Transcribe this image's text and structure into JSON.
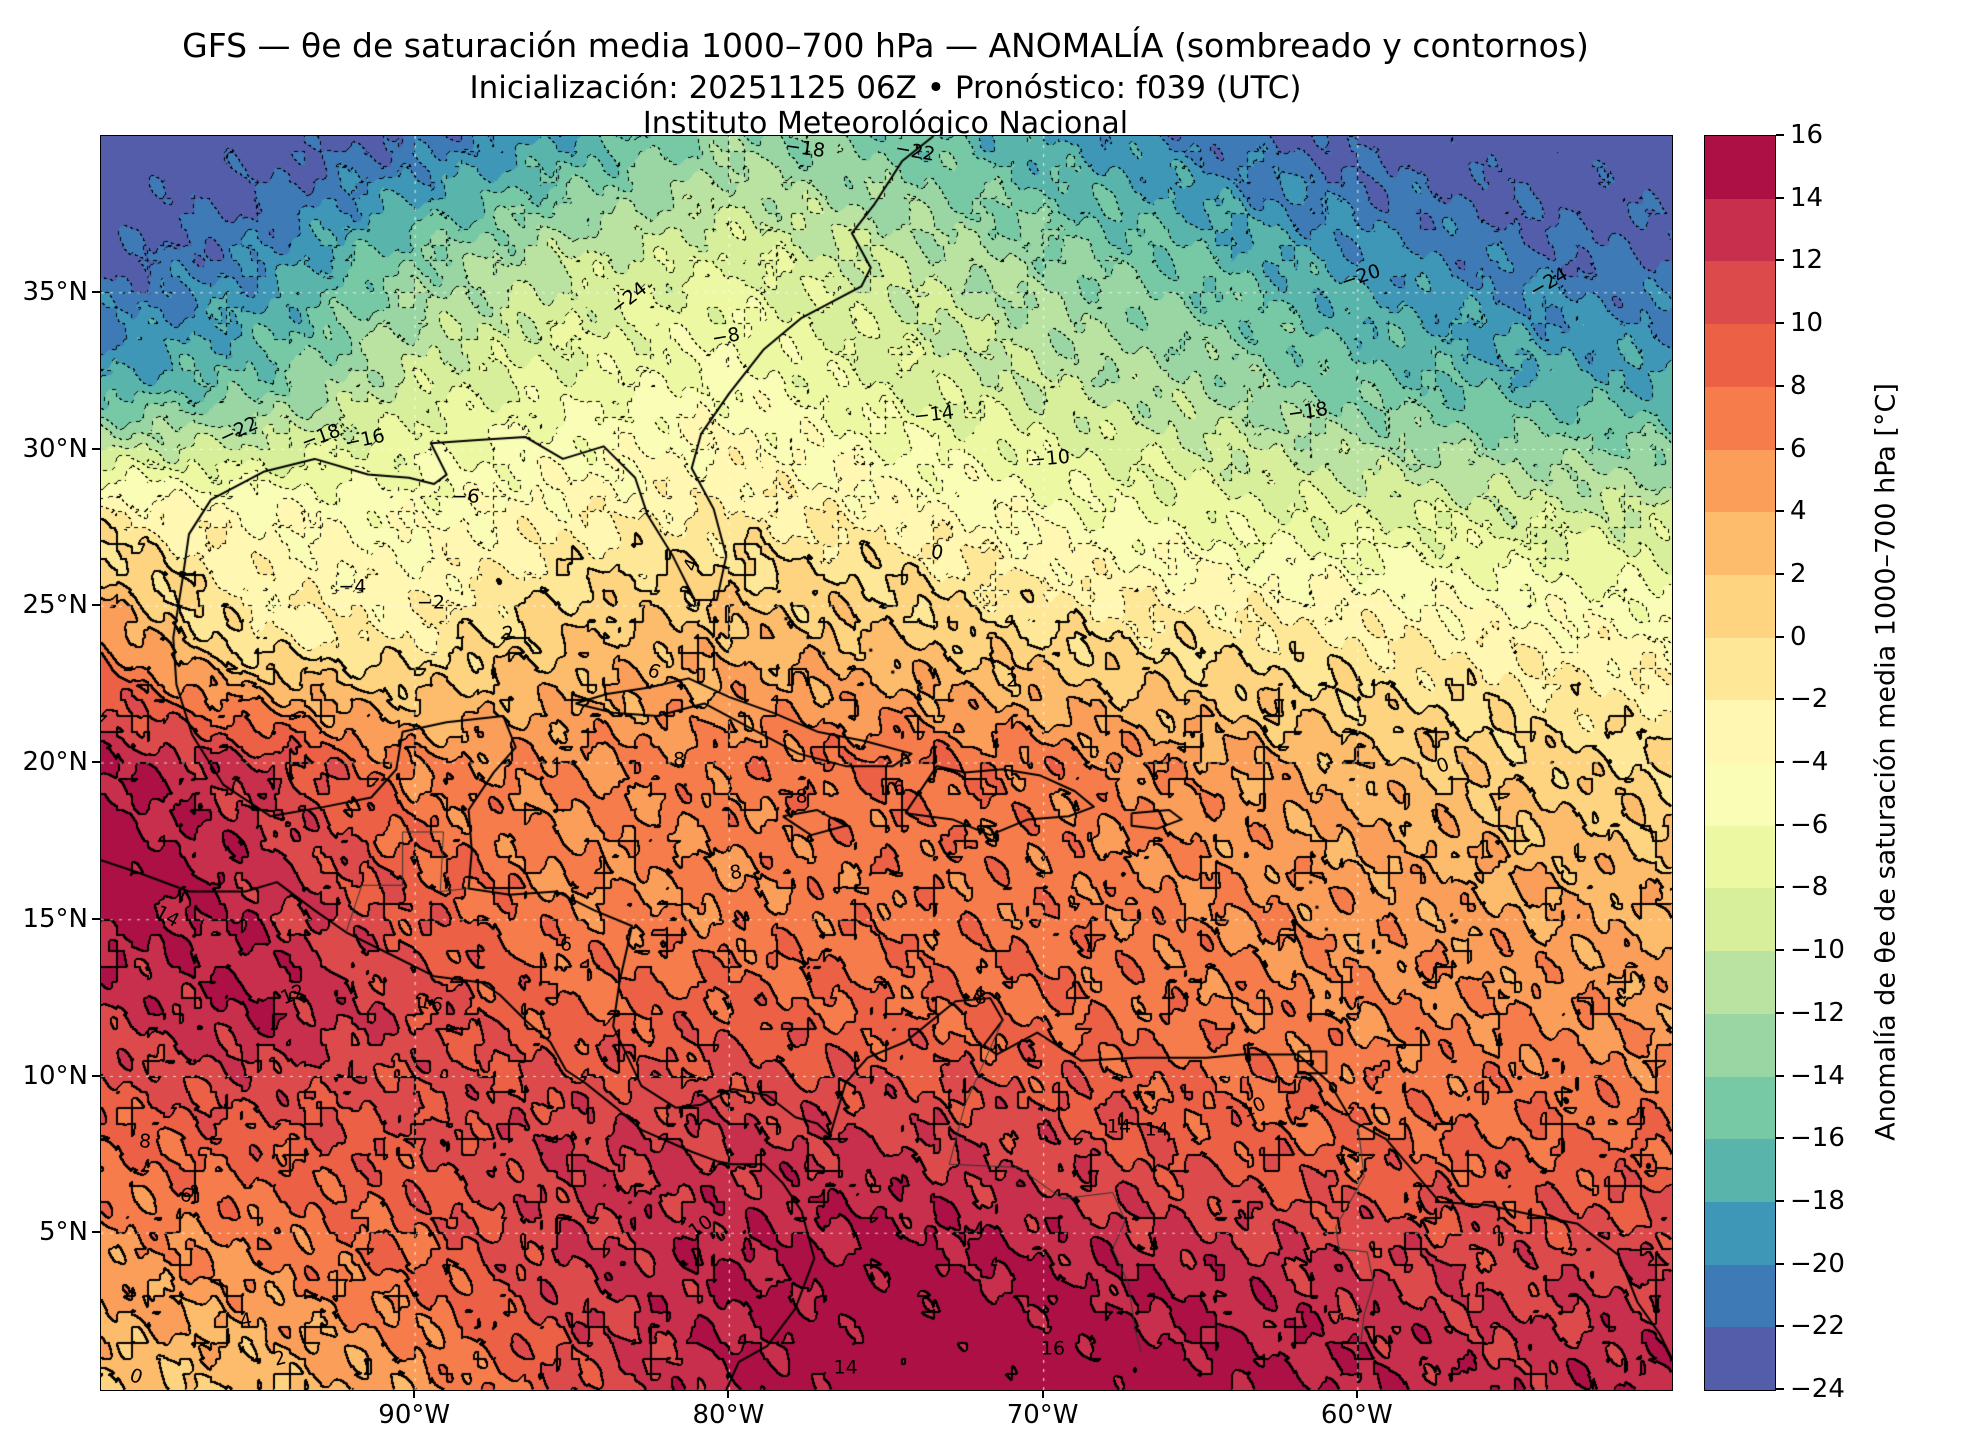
{
  "chart_data": {
    "type": "heatmap",
    "title": "GFS — θe de saturación media 1000–700 hPa — ANOMALÍA (sombreado y contornos)",
    "subtitle": "Inicialización: 20251125 06Z  •  Pronóstico: f039 (UTC)",
    "institution": "Instituto Meteorológico Nacional",
    "model": "GFS",
    "init": "20251125 06Z",
    "forecast": "f039 (UTC)",
    "colorbar_label": "Anomalía de θe de saturación media 1000–700 hPa [°C]",
    "units": "°C",
    "lon_range": [
      -100,
      -50
    ],
    "lat_range": [
      0,
      40
    ],
    "x_ticks": [
      {
        "label": "90°W",
        "lon": -90
      },
      {
        "label": "80°W",
        "lon": -80
      },
      {
        "label": "70°W",
        "lon": -70
      },
      {
        "label": "60°W",
        "lon": -60
      }
    ],
    "y_ticks": [
      {
        "label": "5°N",
        "lat": 5
      },
      {
        "label": "10°N",
        "lat": 10
      },
      {
        "label": "15°N",
        "lat": 15
      },
      {
        "label": "20°N",
        "lat": 20
      },
      {
        "label": "25°N",
        "lat": 25
      },
      {
        "label": "30°N",
        "lat": 30
      },
      {
        "label": "35°N",
        "lat": 35
      }
    ],
    "levels_min": -24,
    "levels_max": 16,
    "level_step": 2,
    "colormap_name": "Spectral_r",
    "colormap_stops": [
      "#5e4fa2",
      "#3288bd",
      "#66c2a5",
      "#abdda4",
      "#e6f598",
      "#ffffbf",
      "#fee08b",
      "#fdae61",
      "#f46d43",
      "#d53e4f",
      "#9e0142"
    ],
    "grid": {
      "row_order": "north_to_south",
      "lats": [
        40,
        36,
        32,
        28,
        24,
        20,
        16,
        12,
        8,
        4,
        0
      ],
      "lons": [
        -100,
        -95,
        -90,
        -85,
        -80,
        -75,
        -70,
        -65,
        -60,
        -55,
        -50
      ],
      "values": [
        [
          -24,
          -24,
          -22,
          -18,
          -13,
          -15,
          -18,
          -21,
          -23,
          -24,
          -24
        ],
        [
          -23,
          -20,
          -14,
          -10,
          -8,
          -10,
          -13,
          -16,
          -19,
          -21,
          -22
        ],
        [
          -18,
          -15,
          -9,
          -7,
          -5,
          -8,
          -10,
          -12,
          -15,
          -17,
          -18
        ],
        [
          -2,
          -4,
          -5,
          -3,
          -2,
          -3,
          -5,
          -7,
          -8,
          -9,
          -10
        ],
        [
          6,
          -2,
          -2,
          2,
          3,
          2,
          0,
          -1,
          -2,
          -3,
          -4
        ],
        [
          14,
          12,
          6,
          6,
          7,
          8,
          7,
          5,
          3,
          1,
          0
        ],
        [
          16,
          13,
          9,
          6,
          6,
          7,
          7,
          6,
          5,
          4,
          3
        ],
        [
          12,
          14,
          11,
          8,
          9,
          8,
          8,
          7,
          6,
          6,
          5
        ],
        [
          8,
          9,
          10,
          12,
          12,
          12,
          11,
          9,
          8,
          8,
          8
        ],
        [
          5,
          6,
          8,
          12,
          14,
          15,
          14,
          13,
          12,
          11,
          12
        ],
        [
          2,
          2,
          5,
          10,
          14,
          16,
          16,
          15,
          14,
          13,
          14
        ]
      ]
    },
    "contour_labels": [
      {
        "text": "−24",
        "lon": -83.2,
        "lat": 34.8,
        "rot": -38
      },
      {
        "text": "−22",
        "lon": -95.6,
        "lat": 30.6,
        "rot": -25
      },
      {
        "text": "−18",
        "lon": -93.0,
        "lat": 30.4,
        "rot": -20
      },
      {
        "text": "−16",
        "lon": -91.6,
        "lat": 30.3,
        "rot": -12
      },
      {
        "text": "−18",
        "lon": -77.6,
        "lat": 39.6,
        "rot": 8
      },
      {
        "text": "−22",
        "lon": -74.1,
        "lat": 39.5,
        "rot": 10
      },
      {
        "text": "−20",
        "lon": -59.9,
        "lat": 35.5,
        "rot": -18
      },
      {
        "text": "−24",
        "lon": -53.9,
        "lat": 35.3,
        "rot": -30
      },
      {
        "text": "−18",
        "lon": -61.6,
        "lat": 31.2,
        "rot": -8
      },
      {
        "text": "−14",
        "lon": -73.5,
        "lat": 31.1,
        "rot": -6
      },
      {
        "text": "−10",
        "lon": -69.8,
        "lat": 29.7,
        "rot": -5
      },
      {
        "text": "−8",
        "lon": -80.1,
        "lat": 33.6,
        "rot": -10
      },
      {
        "text": "−6",
        "lon": -88.4,
        "lat": 28.5,
        "rot": 0
      },
      {
        "text": "−4",
        "lon": -92.0,
        "lat": 25.6,
        "rot": 0
      },
      {
        "text": "−2",
        "lon": -89.5,
        "lat": 25.1,
        "rot": 0
      },
      {
        "text": "4",
        "lon": -81.2,
        "lat": 26.3,
        "rot": -70
      },
      {
        "text": "0",
        "lon": -73.4,
        "lat": 26.7,
        "rot": 10
      },
      {
        "text": "0",
        "lon": -57.3,
        "lat": 19.9,
        "rot": -20
      },
      {
        "text": "2",
        "lon": -87.0,
        "lat": 24.1,
        "rot": -15
      },
      {
        "text": "2",
        "lon": -71.0,
        "lat": 22.6,
        "rot": 0
      },
      {
        "text": "6",
        "lon": -82.4,
        "lat": 22.9,
        "rot": 20
      },
      {
        "text": "8",
        "lon": -81.6,
        "lat": 20.1,
        "rot": 0
      },
      {
        "text": "8",
        "lon": -77.7,
        "lat": 18.9,
        "rot": 0
      },
      {
        "text": "6",
        "lon": -74.6,
        "lat": 19.2,
        "rot": 0
      },
      {
        "text": "8",
        "lon": -79.8,
        "lat": 16.5,
        "rot": -10
      },
      {
        "text": "6",
        "lon": -85.2,
        "lat": 14.2,
        "rot": 0
      },
      {
        "text": "14",
        "lon": -97.9,
        "lat": 15.1,
        "rot": 28
      },
      {
        "text": "12",
        "lon": -93.9,
        "lat": 12.6,
        "rot": -22
      },
      {
        "text": "16",
        "lon": -89.5,
        "lat": 12.3,
        "rot": 12
      },
      {
        "text": "8",
        "lon": -98.6,
        "lat": 7.9,
        "rot": 5
      },
      {
        "text": "6",
        "lon": -97.3,
        "lat": 6.2,
        "rot": 8
      },
      {
        "text": "10",
        "lon": -80.9,
        "lat": 5.2,
        "rot": -35
      },
      {
        "text": "8",
        "lon": -72.0,
        "lat": 12.5,
        "rot": 0
      },
      {
        "text": "10",
        "lon": -63.3,
        "lat": 9.0,
        "rot": -25
      },
      {
        "text": "14",
        "lon": -67.6,
        "lat": 8.4,
        "rot": 0
      },
      {
        "text": "14",
        "lon": -66.4,
        "lat": 8.3,
        "rot": 0
      },
      {
        "text": "4",
        "lon": -95.4,
        "lat": 2.2,
        "rot": -10
      },
      {
        "text": "2",
        "lon": -94.3,
        "lat": 1.0,
        "rot": -15
      },
      {
        "text": "0",
        "lon": -98.9,
        "lat": 0.4,
        "rot": 20
      },
      {
        "text": "14",
        "lon": -76.3,
        "lat": 0.7,
        "rot": 0
      },
      {
        "text": "16",
        "lon": -69.7,
        "lat": 1.3,
        "rot": 0
      }
    ],
    "coastlines": [
      [
        [
          -97.4,
          25.9
        ],
        [
          -97.2,
          27.3
        ],
        [
          -96.5,
          28.4
        ],
        [
          -94.8,
          29.3
        ],
        [
          -93.2,
          29.7
        ],
        [
          -91.5,
          29.2
        ],
        [
          -90.2,
          29.1
        ],
        [
          -89.4,
          28.9
        ],
        [
          -89.0,
          29.2
        ],
        [
          -89.5,
          30.2
        ],
        [
          -88.0,
          30.3
        ],
        [
          -86.5,
          30.4
        ],
        [
          -85.3,
          29.7
        ],
        [
          -84.0,
          30.1
        ],
        [
          -83.0,
          29.1
        ],
        [
          -82.6,
          27.9
        ],
        [
          -81.8,
          26.6
        ],
        [
          -81.1,
          25.2
        ],
        [
          -80.4,
          25.2
        ],
        [
          -80.1,
          26.6
        ],
        [
          -80.5,
          28.1
        ],
        [
          -81.2,
          29.4
        ],
        [
          -80.9,
          30.5
        ],
        [
          -80.0,
          31.8
        ],
        [
          -78.9,
          33.2
        ],
        [
          -77.7,
          34.2
        ],
        [
          -75.8,
          35.2
        ],
        [
          -75.5,
          35.8
        ],
        [
          -76.1,
          36.9
        ],
        [
          -75.4,
          37.8
        ],
        [
          -74.5,
          39.2
        ],
        [
          -73.5,
          40.0
        ]
      ],
      [
        [
          -97.4,
          25.9
        ],
        [
          -97.7,
          24.0
        ],
        [
          -97.6,
          22.5
        ],
        [
          -97.1,
          20.9
        ],
        [
          -96.1,
          19.3
        ],
        [
          -94.6,
          18.3
        ],
        [
          -92.9,
          18.6
        ],
        [
          -91.4,
          18.9
        ],
        [
          -90.6,
          19.8
        ],
        [
          -90.4,
          21.0
        ],
        [
          -89.0,
          21.3
        ],
        [
          -87.2,
          21.5
        ],
        [
          -86.8,
          20.5
        ],
        [
          -87.5,
          19.7
        ],
        [
          -88.3,
          18.5
        ],
        [
          -88.2,
          17.2
        ],
        [
          -88.3,
          16.0
        ],
        [
          -87.0,
          15.8
        ],
        [
          -85.5,
          15.9
        ],
        [
          -84.3,
          15.3
        ],
        [
          -83.1,
          14.8
        ],
        [
          -83.5,
          13.0
        ],
        [
          -83.7,
          11.6
        ],
        [
          -82.8,
          9.7
        ],
        [
          -81.7,
          9.0
        ],
        [
          -80.9,
          9.1
        ],
        [
          -79.9,
          9.6
        ],
        [
          -78.8,
          9.4
        ],
        [
          -77.9,
          8.7
        ],
        [
          -77.2,
          8.5
        ],
        [
          -76.8,
          8.1
        ],
        [
          -76.3,
          9.8
        ],
        [
          -75.6,
          10.6
        ],
        [
          -74.4,
          11.1
        ],
        [
          -72.8,
          12.4
        ],
        [
          -71.7,
          12.5
        ],
        [
          -71.3,
          11.8
        ],
        [
          -71.9,
          11.0
        ],
        [
          -71.5,
          10.7
        ],
        [
          -70.2,
          11.4
        ],
        [
          -68.8,
          10.5
        ],
        [
          -67.0,
          10.6
        ],
        [
          -64.8,
          10.6
        ],
        [
          -63.7,
          10.7
        ],
        [
          -62.8,
          10.7
        ],
        [
          -61.9,
          10.7
        ],
        [
          -60.9,
          9.8
        ],
        [
          -60.2,
          8.6
        ],
        [
          -59.1,
          8.0
        ],
        [
          -57.4,
          6.0
        ],
        [
          -55.9,
          5.9
        ],
        [
          -54.5,
          5.6
        ],
        [
          -53.0,
          5.3
        ],
        [
          -51.7,
          4.3
        ],
        [
          -51.1,
          2.8
        ],
        [
          -50.4,
          1.8
        ],
        [
          -50.0,
          1.0
        ]
      ],
      [
        [
          -100.0,
          16.9
        ],
        [
          -98.8,
          16.5
        ],
        [
          -97.2,
          15.9
        ],
        [
          -95.4,
          15.9
        ],
        [
          -94.4,
          16.2
        ],
        [
          -93.2,
          15.3
        ],
        [
          -92.2,
          14.6
        ],
        [
          -90.8,
          13.9
        ],
        [
          -89.4,
          13.2
        ],
        [
          -87.9,
          13.0
        ],
        [
          -87.3,
          12.6
        ],
        [
          -86.5,
          11.8
        ],
        [
          -85.7,
          11.1
        ],
        [
          -85.2,
          10.2
        ],
        [
          -84.6,
          9.8
        ],
        [
          -83.6,
          9.0
        ],
        [
          -82.8,
          8.3
        ],
        [
          -81.2,
          7.6
        ],
        [
          -80.4,
          7.3
        ],
        [
          -79.9,
          7.2
        ],
        [
          -78.9,
          7.2
        ],
        [
          -78.3,
          6.6
        ],
        [
          -77.7,
          5.7
        ],
        [
          -77.3,
          4.2
        ],
        [
          -77.9,
          2.6
        ],
        [
          -78.8,
          1.4
        ],
        [
          -79.7,
          0.9
        ],
        [
          -80.1,
          0.0
        ]
      ],
      [
        [
          -84.9,
          21.9
        ],
        [
          -83.9,
          22.2
        ],
        [
          -82.6,
          22.4
        ],
        [
          -81.3,
          22.7
        ],
        [
          -80.0,
          22.1
        ],
        [
          -78.6,
          21.6
        ],
        [
          -77.2,
          21.0
        ],
        [
          -75.7,
          20.7
        ],
        [
          -74.2,
          20.3
        ],
        [
          -74.8,
          19.9
        ],
        [
          -76.3,
          19.9
        ],
        [
          -77.8,
          20.3
        ],
        [
          -79.3,
          21.1
        ],
        [
          -80.8,
          21.9
        ],
        [
          -82.3,
          21.5
        ],
        [
          -83.7,
          21.6
        ],
        [
          -84.9,
          21.9
        ]
      ],
      [
        [
          -74.4,
          18.4
        ],
        [
          -72.9,
          18.2
        ],
        [
          -71.7,
          17.7
        ],
        [
          -70.5,
          18.2
        ],
        [
          -69.2,
          18.3
        ],
        [
          -68.4,
          18.6
        ],
        [
          -69.0,
          19.1
        ],
        [
          -70.1,
          19.6
        ],
        [
          -71.3,
          19.8
        ],
        [
          -72.5,
          19.7
        ],
        [
          -73.4,
          19.9
        ],
        [
          -74.4,
          18.4
        ]
      ],
      [
        [
          -78.3,
          18.3
        ],
        [
          -77.2,
          18.5
        ],
        [
          -76.3,
          18.0
        ],
        [
          -77.4,
          17.7
        ],
        [
          -78.3,
          18.3
        ]
      ],
      [
        [
          -67.2,
          18.4
        ],
        [
          -66.0,
          18.5
        ],
        [
          -65.6,
          18.2
        ],
        [
          -66.4,
          17.9
        ],
        [
          -67.2,
          18.0
        ],
        [
          -67.2,
          18.4
        ]
      ],
      [
        [
          -61.9,
          10.8
        ],
        [
          -61.0,
          10.8
        ],
        [
          -61.0,
          10.1
        ],
        [
          -61.9,
          10.1
        ],
        [
          -61.9,
          10.8
        ]
      ]
    ],
    "borders": [
      [
        [
          -71.3,
          11.8
        ],
        [
          -72.5,
          9.1
        ],
        [
          -73.0,
          7.2
        ],
        [
          -70.8,
          7.1
        ],
        [
          -69.4,
          6.1
        ],
        [
          -67.8,
          6.3
        ],
        [
          -67.4,
          5.4
        ],
        [
          -67.8,
          4.5
        ],
        [
          -67.3,
          3.4
        ],
        [
          -67.1,
          2.0
        ],
        [
          -66.9,
          1.2
        ]
      ],
      [
        [
          -60.0,
          8.5
        ],
        [
          -59.8,
          6.8
        ],
        [
          -60.7,
          5.2
        ],
        [
          -60.6,
          4.5
        ],
        [
          -59.7,
          4.4
        ],
        [
          -59.5,
          3.4
        ],
        [
          -59.8,
          2.4
        ],
        [
          -59.9,
          1.5
        ]
      ],
      [
        [
          -92.2,
          14.6
        ],
        [
          -91.7,
          16.1
        ],
        [
          -90.4,
          16.1
        ],
        [
          -90.4,
          17.8
        ],
        [
          -89.1,
          17.8
        ],
        [
          -89.2,
          15.9
        ],
        [
          -88.3,
          16.0
        ]
      ]
    ],
    "islands": [
      [
        -77.5,
        24.0
      ],
      [
        -78.2,
        24.6
      ],
      [
        -77.0,
        23.5
      ],
      [
        -75.5,
        23.6
      ],
      [
        -74.8,
        22.9
      ],
      [
        -73.9,
        22.4
      ],
      [
        -61.5,
        16.2
      ],
      [
        -61.3,
        15.4
      ],
      [
        -61.0,
        14.7
      ],
      [
        -61.0,
        14.0
      ],
      [
        -60.9,
        13.1
      ],
      [
        -59.5,
        13.2
      ],
      [
        -63.1,
        18.0
      ],
      [
        -64.8,
        18.3
      ],
      [
        -81.4,
        19.3
      ]
    ]
  }
}
